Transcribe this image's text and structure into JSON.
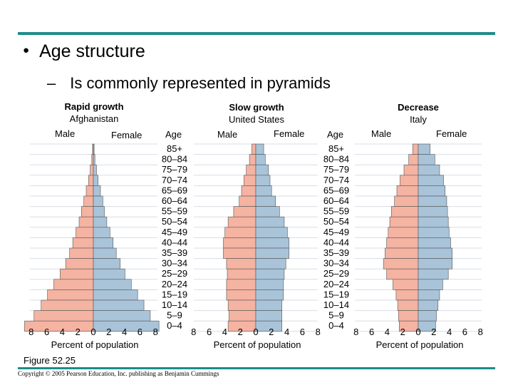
{
  "slide": {
    "bullet": "Age structure",
    "subbullet": "Is commonly represented in pyramids",
    "figure_label": "Figure 52.25",
    "copyright": "Copyright © 2005 Pearson Education, Inc. publishing as Benjamin Cummings"
  },
  "colors": {
    "male": "#f5b3a2",
    "female": "#a9c4d9",
    "grid": "#d9dde6",
    "rule": "#1e8c89"
  },
  "labels": {
    "male": "Male",
    "female": "Female",
    "age": "Age",
    "xlabel": "Percent of population"
  },
  "chart_data": {
    "type": "bar",
    "title": "Age structure",
    "x_ticks": [
      "8",
      "6",
      "4",
      "2",
      "0",
      "2",
      "4",
      "6",
      "8"
    ],
    "xlim": [
      -8,
      8
    ],
    "age_groups": [
      "85+",
      "80–84",
      "75–79",
      "70–74",
      "65–69",
      "60–64",
      "55–59",
      "50–54",
      "45–49",
      "40–44",
      "35–39",
      "30–34",
      "25–29",
      "20–24",
      "15–19",
      "10–14",
      "5–9",
      "0–4"
    ],
    "pyramids": [
      {
        "category": "Rapid growth",
        "country": "Afghanistan",
        "male": [
          0.1,
          0.2,
          0.4,
          0.6,
          0.9,
          1.2,
          1.5,
          1.8,
          2.2,
          2.6,
          3.0,
          3.5,
          4.2,
          5.0,
          5.8,
          6.6,
          7.5,
          8.7
        ],
        "female": [
          0.1,
          0.2,
          0.4,
          0.6,
          0.9,
          1.2,
          1.4,
          1.7,
          2.1,
          2.5,
          2.9,
          3.4,
          4.0,
          4.8,
          5.6,
          6.4,
          7.2,
          8.3
        ]
      },
      {
        "category": "Slow growth",
        "country": "United States",
        "male": [
          0.5,
          0.8,
          1.2,
          1.5,
          1.8,
          2.1,
          2.8,
          3.5,
          3.9,
          4.1,
          4.1,
          3.7,
          3.6,
          3.7,
          3.7,
          3.5,
          3.4,
          3.5
        ],
        "female": [
          1.0,
          1.2,
          1.6,
          1.8,
          2.0,
          2.5,
          3.0,
          3.6,
          4.0,
          4.2,
          4.2,
          3.8,
          3.6,
          3.5,
          3.5,
          3.3,
          3.3,
          3.3
        ]
      },
      {
        "category": "Decrease",
        "country": "Italy",
        "male": [
          0.7,
          1.2,
          1.8,
          2.3,
          2.7,
          3.0,
          3.4,
          3.6,
          3.8,
          4.0,
          4.2,
          4.4,
          4.0,
          3.2,
          2.8,
          2.6,
          2.5,
          2.4
        ],
        "female": [
          1.5,
          2.1,
          2.7,
          3.2,
          3.4,
          3.6,
          3.7,
          3.8,
          3.9,
          4.1,
          4.3,
          4.3,
          3.8,
          3.1,
          2.7,
          2.5,
          2.3,
          2.2
        ]
      }
    ]
  }
}
